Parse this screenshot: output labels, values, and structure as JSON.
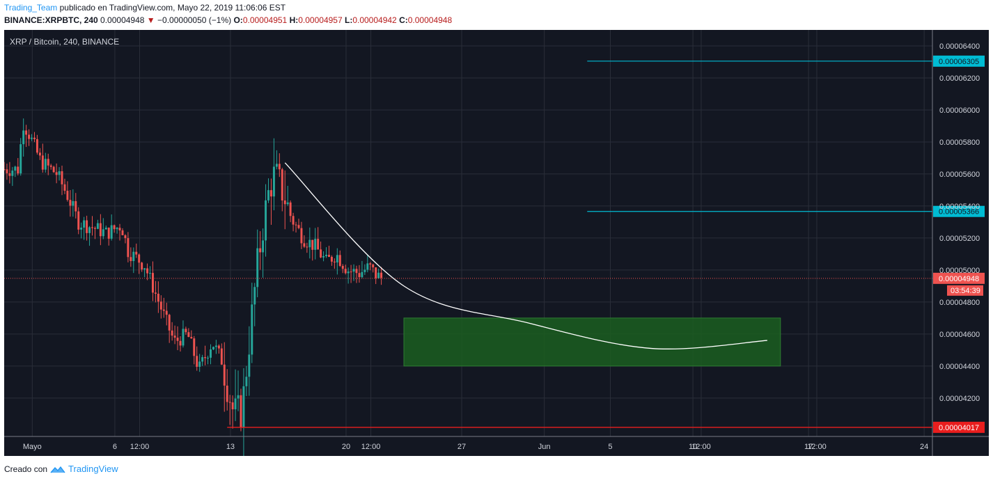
{
  "header": {
    "user": "Trading_Team",
    "published_text": "publicado en TradingView.com, Mayo 22, 2019 11:06:06 EST",
    "symbol_line": "BINANCE:XRPBTC, 240",
    "last_price": "0.00004948",
    "change": "−0.00000050 (−1%)",
    "o_label": "O:",
    "o": "0.00004951",
    "h_label": "H:",
    "h": "0.00004957",
    "l_label": "L:",
    "l": "0.00004942",
    "c_label": "C:",
    "c": "0.00004948"
  },
  "chart_title": "XRP / Bitcoin, 240, BINANCE",
  "footer": {
    "created_with": "Creado con",
    "brand": "TradingView"
  },
  "colors": {
    "background": "#131722",
    "grid": "#2a2e39",
    "up": "#26a69a",
    "down": "#ef5350",
    "level_line": "#00bcd4",
    "target_box": "#1b5e20",
    "arc": "#ffffff",
    "support": "#e91e1e"
  },
  "chart_data": {
    "type": "candlestick",
    "y_axis": {
      "min": 3.96e-05,
      "max": 6.5e-05,
      "ticks": [
        "0.00006400",
        "0.00006200",
        "0.00006000",
        "0.00005800",
        "0.00005600",
        "0.00005400",
        "0.00005200",
        "0.00005000",
        "0.00004800",
        "0.00004600",
        "0.00004400",
        "0.00004200"
      ]
    },
    "x_axis": {
      "labels": [
        {
          "text": "Mayo",
          "day": 0
        },
        {
          "text": "6",
          "day": 5
        },
        {
          "text": "12:00",
          "day": 6.5
        },
        {
          "text": "13",
          "day": 12
        },
        {
          "text": "20",
          "day": 19
        },
        {
          "text": "12:00",
          "day": 20.5
        },
        {
          "text": "27",
          "day": 26
        },
        {
          "text": "Jun",
          "day": 31
        },
        {
          "text": "5",
          "day": 35
        },
        {
          "text": "10",
          "day": 40
        },
        {
          "text": "12:00",
          "day": 40.5
        },
        {
          "text": "17",
          "day": 47
        },
        {
          "text": "12:00",
          "day": 47.5
        },
        {
          "text": "24",
          "day": 54
        }
      ],
      "day_range": [
        -1.7,
        54.5
      ]
    },
    "price_path": [
      {
        "day": -1.7,
        "price": 5.63e-05
      },
      {
        "day": -0.8,
        "price": 5.63e-05
      },
      {
        "day": -0.6,
        "price": 5.93e-05
      },
      {
        "day": -0.2,
        "price": 5.85e-05
      },
      {
        "day": 0.5,
        "price": 5.68e-05
      },
      {
        "day": 1.5,
        "price": 5.6e-05
      },
      {
        "day": 2.2,
        "price": 5.45e-05
      },
      {
        "day": 2.8,
        "price": 5.3e-05
      },
      {
        "day": 3.8,
        "price": 5.26e-05
      },
      {
        "day": 4.5,
        "price": 5.23e-05
      },
      {
        "day": 5.4,
        "price": 5.28e-05
      },
      {
        "day": 5.8,
        "price": 5.12e-05
      },
      {
        "day": 6.8,
        "price": 5.03e-05
      },
      {
        "day": 7.4,
        "price": 4.87e-05
      },
      {
        "day": 8.1,
        "price": 4.68e-05
      },
      {
        "day": 8.6,
        "price": 4.55e-05
      },
      {
        "day": 9.4,
        "price": 4.6e-05
      },
      {
        "day": 10.1,
        "price": 4.38e-05
      },
      {
        "day": 10.9,
        "price": 4.55e-05
      },
      {
        "day": 11.5,
        "price": 4.43e-05
      },
      {
        "day": 12.2,
        "price": 4.1e-05
      },
      {
        "day": 12.7,
        "price": 4.12e-05
      },
      {
        "day": 13.2,
        "price": 4.62e-05
      },
      {
        "day": 13.6,
        "price": 5e-05
      },
      {
        "day": 14.0,
        "price": 5.3e-05
      },
      {
        "day": 14.4,
        "price": 5.53e-05
      },
      {
        "day": 14.7,
        "price": 5.6e-05
      },
      {
        "day": 15.2,
        "price": 5.48e-05
      },
      {
        "day": 15.7,
        "price": 5.32e-05
      },
      {
        "day": 16.4,
        "price": 5.2e-05
      },
      {
        "day": 17.1,
        "price": 5.15e-05
      },
      {
        "day": 17.8,
        "price": 5.05e-05
      },
      {
        "day": 18.4,
        "price": 5.1e-05
      },
      {
        "day": 19.1,
        "price": 5e-05
      },
      {
        "day": 19.8,
        "price": 4.98e-05
      },
      {
        "day": 20.4,
        "price": 5.02e-05
      },
      {
        "day": 20.8,
        "price": 4.97e-05
      },
      {
        "day": 21.2,
        "price": 4.948e-05
      }
    ],
    "candles_per_day": 6,
    "horizontal_levels": [
      {
        "price": 6.305e-05,
        "label": "0.00006305",
        "from_day": 33.6
      },
      {
        "price": 5.366e-05,
        "label": "0.00005366",
        "from_day": 33.6
      }
    ],
    "current_price": {
      "price": 4.948e-05,
      "label": "0.00004948",
      "countdown": "03:54:39"
    },
    "support_line": {
      "price": 4.017e-05,
      "label": "0.00004017",
      "from_day": 11.8
    },
    "target_zone": {
      "day_from": 22.5,
      "day_to": 45.3,
      "price_from": 4.4e-05,
      "price_to": 4.7e-05
    },
    "arc": [
      {
        "day": 15.3,
        "price": 5.67e-05
      },
      {
        "day": 22.5,
        "price": 4.9e-05
      },
      {
        "day": 30,
        "price": 4.67e-05
      },
      {
        "day": 37.5,
        "price": 4.51e-05
      },
      {
        "day": 44.5,
        "price": 4.56e-05
      }
    ]
  }
}
